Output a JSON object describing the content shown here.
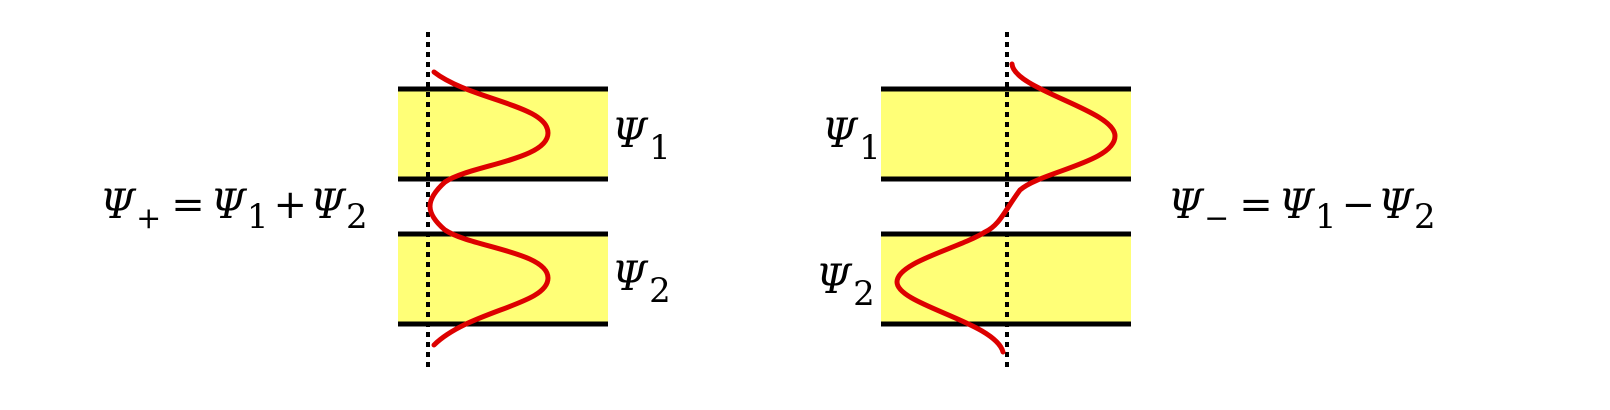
{
  "colors": {
    "background": "#ffffff",
    "waveguide_fill": "#ffff77",
    "boundary_line": "#000000",
    "symmetry_axis": "#000000",
    "wavefunction": "#dd0000"
  },
  "symmetric_mode": {
    "equation": {
      "lhs_symbol": "Ψ",
      "lhs_subscript": "+",
      "equals": "=",
      "term1_symbol": "Ψ",
      "term1_subscript": "1",
      "operator": "+",
      "term2_symbol": "Ψ",
      "term2_subscript": "2"
    },
    "label_top": {
      "symbol": "Ψ",
      "subscript": "1"
    },
    "label_bottom": {
      "symbol": "Ψ",
      "subscript": "2"
    }
  },
  "antisymmetric_mode": {
    "equation": {
      "lhs_symbol": "Ψ",
      "lhs_subscript": "−",
      "equals": "=",
      "term1_symbol": "Ψ",
      "term1_subscript": "1",
      "operator": "−",
      "term2_symbol": "Ψ",
      "term2_subscript": "2"
    },
    "label_top": {
      "symbol": "Ψ",
      "subscript": "1"
    },
    "label_bottom": {
      "symbol": "Ψ",
      "subscript": "2"
    }
  }
}
